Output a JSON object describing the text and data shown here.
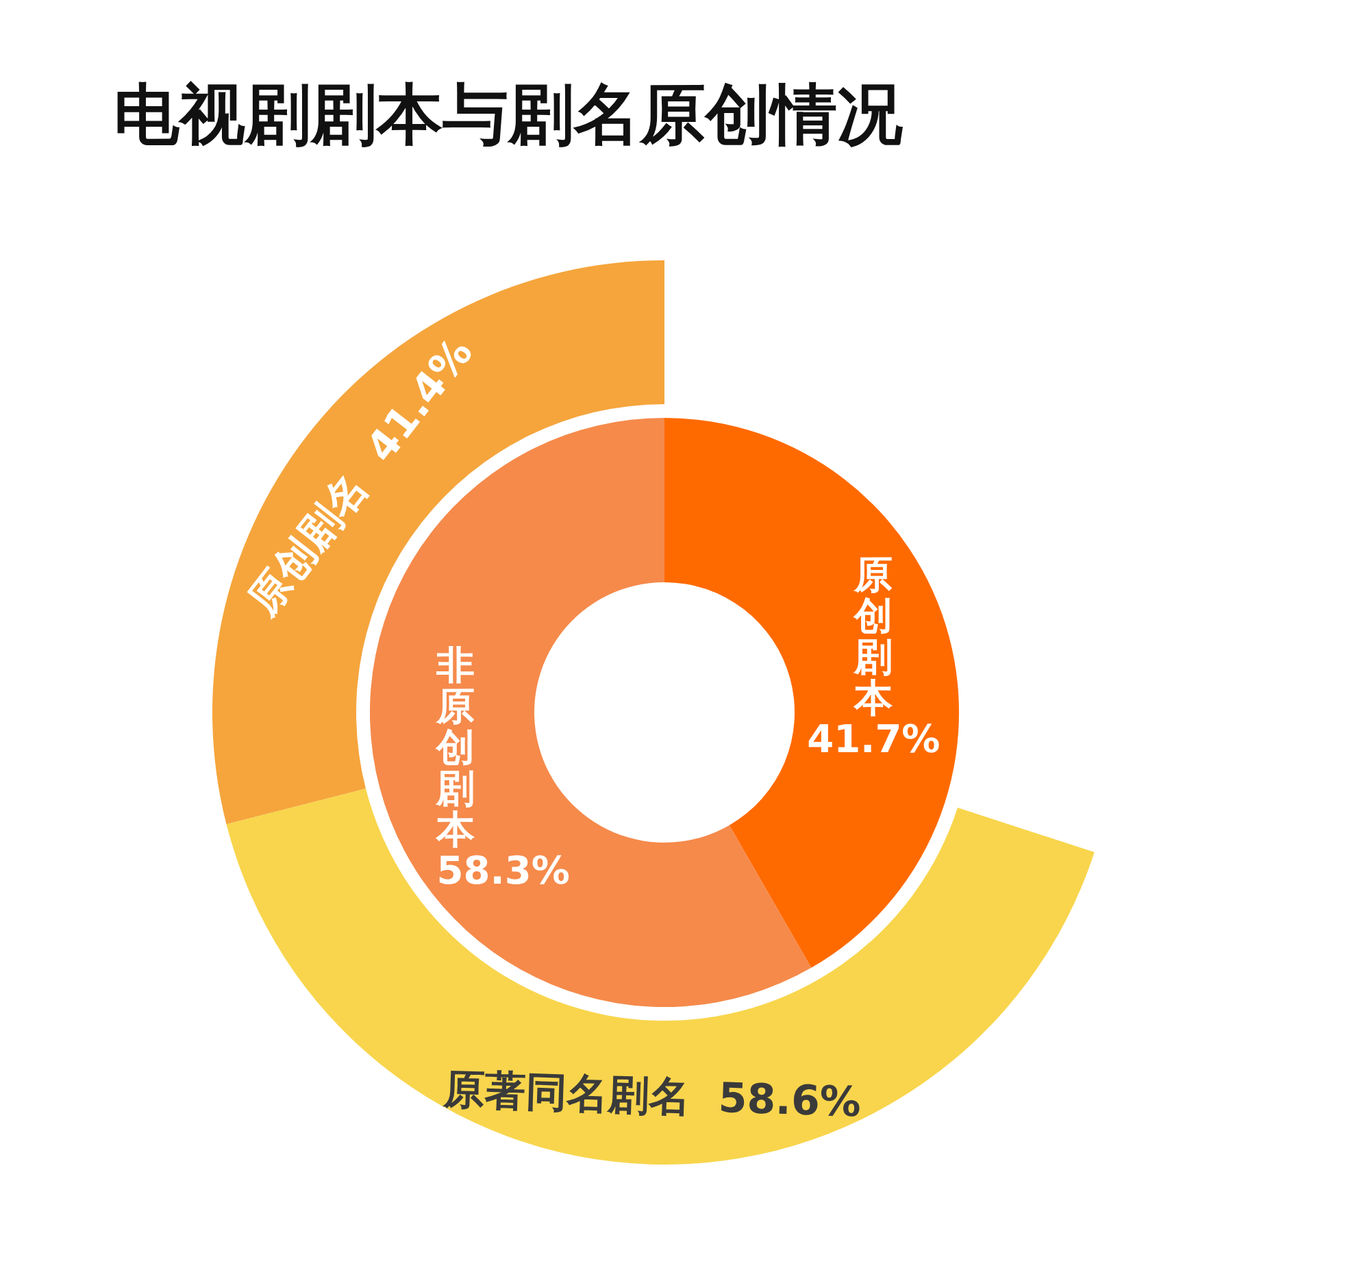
{
  "chart_data": [
    {
      "type": "donut",
      "title": "电视剧剧本与剧名原创情况",
      "categories": [
        "原创剧本",
        "非原创剧本"
      ],
      "values": [
        41.7,
        58.3
      ],
      "value_labels": [
        "41.7%",
        "58.3%"
      ],
      "colors": [
        "#ff6a00",
        "#f58a4b"
      ]
    },
    {
      "type": "donut",
      "categories": [
        "原创剧名",
        "原著同名剧名"
      ],
      "values": [
        41.4,
        58.6
      ],
      "value_labels": [
        "41.4%",
        "58.6%"
      ],
      "colors": [
        "#f5a53c",
        "#f8d54c"
      ]
    }
  ]
}
